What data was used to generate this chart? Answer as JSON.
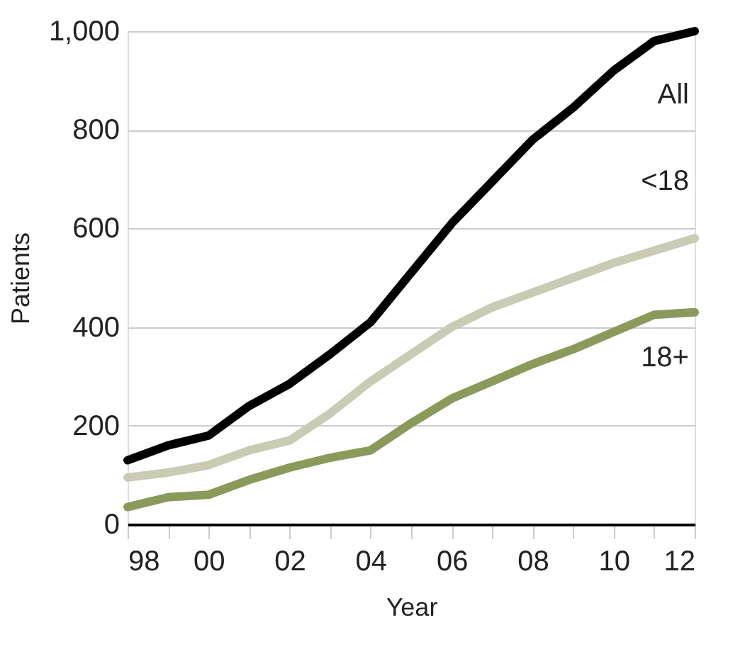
{
  "chart_data": {
    "type": "line",
    "xlabel": "Year",
    "ylabel": "Patients",
    "x": [
      1998,
      1999,
      2000,
      2001,
      2002,
      2003,
      2004,
      2005,
      2006,
      2007,
      2008,
      2009,
      2010,
      2011,
      2012
    ],
    "series": [
      {
        "name": "All",
        "color": "#000000",
        "values": [
          130,
          160,
          180,
          240,
          285,
          345,
          410,
          510,
          610,
          695,
          780,
          845,
          920,
          980,
          1000
        ]
      },
      {
        "name": "<18",
        "color": "#c9cbb4",
        "values": [
          95,
          105,
          120,
          150,
          170,
          225,
          290,
          345,
          400,
          440,
          470,
          500,
          530,
          555,
          580
        ]
      },
      {
        "name": "18+",
        "color": "#8a9a5b",
        "values": [
          35,
          55,
          60,
          90,
          115,
          135,
          150,
          205,
          255,
          290,
          325,
          355,
          390,
          425,
          430
        ]
      }
    ],
    "xlim": [
      1998,
      2012
    ],
    "xticks": [
      {
        "value": 1998,
        "label": "98"
      },
      {
        "value": 1999,
        "label": null
      },
      {
        "value": 2000,
        "label": "00"
      },
      {
        "value": 2001,
        "label": null
      },
      {
        "value": 2002,
        "label": "02"
      },
      {
        "value": 2003,
        "label": null
      },
      {
        "value": 2004,
        "label": "04"
      },
      {
        "value": 2005,
        "label": null
      },
      {
        "value": 2006,
        "label": "06"
      },
      {
        "value": 2007,
        "label": null
      },
      {
        "value": 2008,
        "label": "08"
      },
      {
        "value": 2009,
        "label": null
      },
      {
        "value": 2010,
        "label": "10"
      },
      {
        "value": 2011,
        "label": null
      },
      {
        "value": 2012,
        "label": "12"
      }
    ],
    "ylim": [
      0,
      1000
    ],
    "yticks": [
      0,
      200,
      400,
      600,
      800,
      {
        "value": 1000,
        "label": "1,000"
      }
    ],
    "grid": "y",
    "marker": "none",
    "line_style": "solid"
  }
}
